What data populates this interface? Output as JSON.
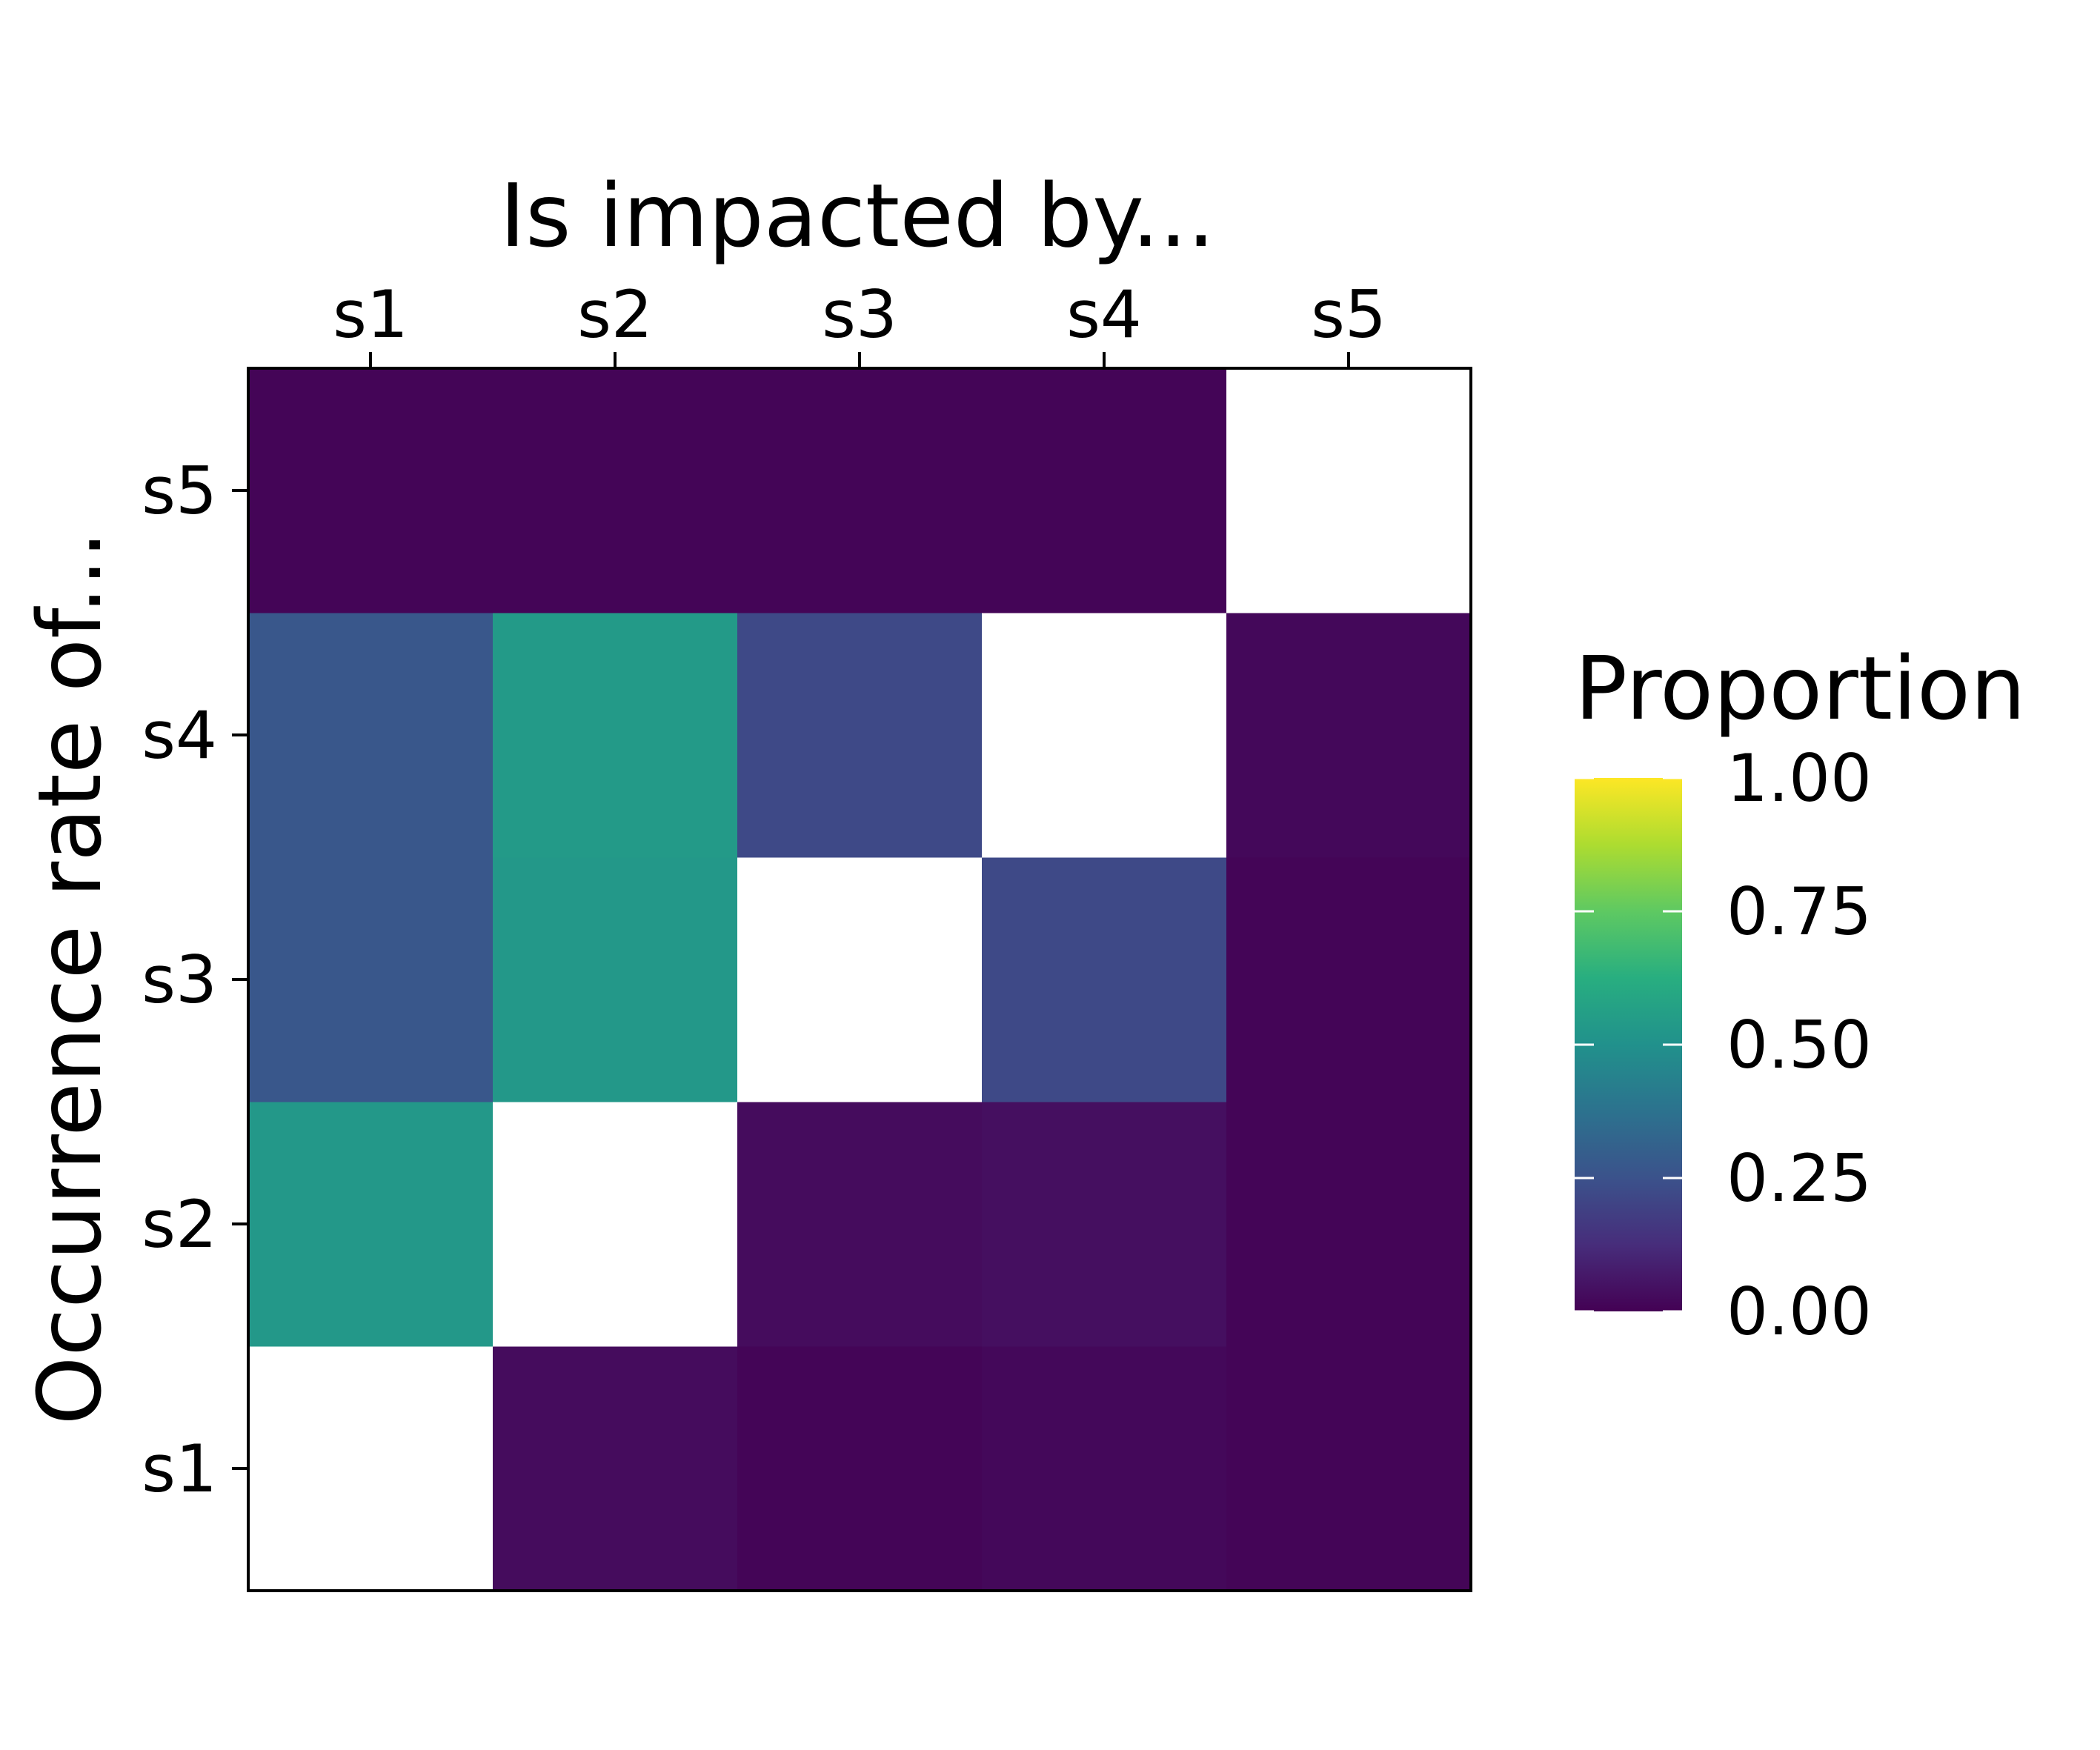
{
  "chart_data": {
    "type": "heatmap",
    "title": "",
    "xlabel": "Is impacted by...",
    "ylabel": "Occurrence rate of...",
    "x_axis_position": "top",
    "x_categories": [
      "s1",
      "s2",
      "s3",
      "s4",
      "s5"
    ],
    "y_categories": [
      "s1",
      "s2",
      "s3",
      "s4",
      "s5"
    ],
    "values": [
      [
        null,
        0.03,
        0.01,
        0.02,
        0.01
      ],
      [
        0.53,
        null,
        0.03,
        0.04,
        0.01
      ],
      [
        0.27,
        0.53,
        null,
        0.22,
        0.01
      ],
      [
        0.27,
        0.54,
        0.22,
        null,
        0.02
      ],
      [
        0.01,
        0.01,
        0.01,
        0.01,
        null
      ]
    ],
    "missing_color": "#ffffff",
    "colorscale": "viridis",
    "legend": {
      "title": "Proportion",
      "position": "right",
      "range": [
        0,
        1
      ],
      "ticks": [
        "0.00",
        "0.25",
        "0.50",
        "0.75",
        "1.00"
      ]
    },
    "grid": false
  }
}
